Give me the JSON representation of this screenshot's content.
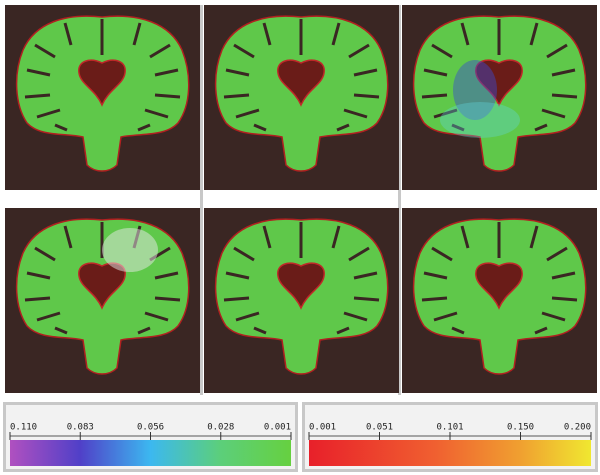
{
  "colorbars": [
    {
      "ticks": [
        "0.110",
        "0.083",
        "0.056",
        "0.028",
        "0.001"
      ]
    },
    {
      "ticks": [
        "0.001",
        "0.051",
        "0.101",
        "0.150",
        "0.200"
      ]
    }
  ]
}
